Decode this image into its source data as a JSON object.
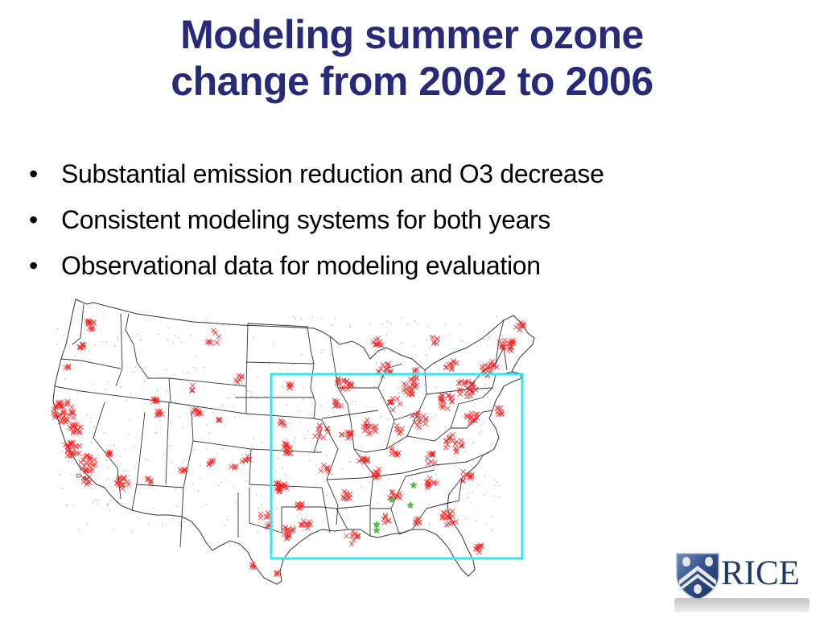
{
  "slide": {
    "title_lines": [
      "Modeling summer ozone",
      "change from 2002 to 2006"
    ],
    "bullets": [
      "Substantial emission reduction and O3 decrease",
      "Consistent  modeling systems for both years",
      "Observational data for modeling evaluation"
    ],
    "bullet_glyph": "•",
    "colors": {
      "title": "#262a78",
      "markers": "#ff1a1a",
      "monitor_dots": "#7aa0e0",
      "highlight_box": "#33e6ee",
      "stars": "#3ecf2e",
      "state_lines": "#333333"
    }
  },
  "map": {
    "description": "Continental US map with observation site markers",
    "marker_legend": {
      "x_marker": "red-x-site",
      "dot_marker": "blue-dot-site",
      "star_marker": "green-star-site"
    },
    "highlight_region": "Southeastern / central-eastern US box"
  },
  "logo": {
    "text": "RICE"
  }
}
